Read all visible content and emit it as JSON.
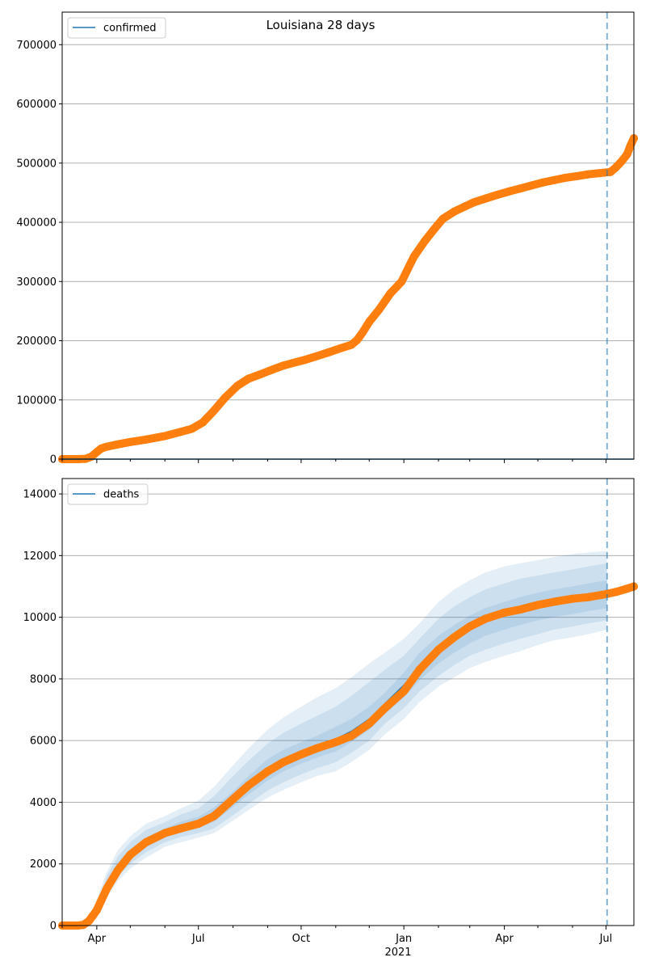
{
  "figure": {
    "title": "Louisiana 28 days"
  },
  "chart_data": [
    {
      "type": "line",
      "panel": "top",
      "title": "Louisiana 28 days",
      "legend": {
        "label": "confirmed",
        "placement": "top-left"
      },
      "grid": true,
      "xlim": [
        "2020-03-01",
        "2021-07-26"
      ],
      "ylim": [
        0,
        755000
      ],
      "yticks": [
        0,
        100000,
        200000,
        300000,
        400000,
        500000,
        600000,
        700000
      ],
      "ytick_labels": [
        "0",
        "100000",
        "200000",
        "300000",
        "400000",
        "500000",
        "600000",
        "700000"
      ],
      "forecast_date": "2021-07-02",
      "series": [
        {
          "name": "confirmed",
          "kind": "model",
          "color": "#1f77b4",
          "x": [
            "2020-03-01",
            "2021-07-26"
          ],
          "y": [
            0,
            0
          ]
        },
        {
          "kind": "observed",
          "color": "#ff7f0e",
          "x": [
            "2020-03-01",
            "2020-03-15",
            "2020-03-22",
            "2020-03-27",
            "2020-04-01",
            "2020-04-05",
            "2020-04-10",
            "2020-04-20",
            "2020-05-01",
            "2020-05-15",
            "2020-06-01",
            "2020-06-15",
            "2020-06-25",
            "2020-07-05",
            "2020-07-15",
            "2020-07-25",
            "2020-08-05",
            "2020-08-15",
            "2020-08-25",
            "2020-09-05",
            "2020-09-15",
            "2020-09-25",
            "2020-10-05",
            "2020-10-15",
            "2020-10-25",
            "2020-11-05",
            "2020-11-15",
            "2020-11-20",
            "2020-11-25",
            "2020-12-01",
            "2020-12-10",
            "2020-12-20",
            "2020-12-30",
            "2021-01-05",
            "2021-01-10",
            "2021-01-20",
            "2021-01-28",
            "2021-02-05",
            "2021-02-15",
            "2021-02-25",
            "2021-03-05",
            "2021-03-15",
            "2021-03-25",
            "2021-04-05",
            "2021-04-15",
            "2021-04-25",
            "2021-05-05",
            "2021-05-15",
            "2021-05-25",
            "2021-06-05",
            "2021-06-15",
            "2021-06-25",
            "2021-07-05",
            "2021-07-10",
            "2021-07-15",
            "2021-07-20",
            "2021-07-23",
            "2021-07-26"
          ],
          "y": [
            0,
            0,
            500,
            4000,
            12000,
            18000,
            21000,
            25000,
            29000,
            33000,
            39000,
            46000,
            51000,
            62000,
            82000,
            104000,
            124000,
            136000,
            143000,
            151000,
            158000,
            163000,
            168000,
            174000,
            180000,
            187000,
            193000,
            201000,
            214000,
            232000,
            253000,
            280000,
            300000,
            323000,
            342000,
            369000,
            388000,
            406000,
            418000,
            427000,
            434000,
            440000,
            446000,
            452000,
            457000,
            462000,
            467000,
            471000,
            475000,
            478000,
            481000,
            483000,
            485000,
            493000,
            503000,
            515000,
            530000,
            542000
          ]
        }
      ]
    },
    {
      "type": "line",
      "panel": "bottom",
      "legend": {
        "label": "deaths",
        "placement": "top-left"
      },
      "grid": true,
      "xlim": [
        "2020-03-01",
        "2021-07-26"
      ],
      "ylim": [
        0,
        14500
      ],
      "yticks": [
        0,
        2000,
        4000,
        6000,
        8000,
        10000,
        12000,
        14000
      ],
      "ytick_labels": [
        "0",
        "2000",
        "4000",
        "6000",
        "8000",
        "10000",
        "12000",
        "14000"
      ],
      "xticks": [
        "2020-04-01",
        "2020-07-01",
        "2020-10-01",
        "2021-01-01",
        "2021-04-01",
        "2021-07-01"
      ],
      "xtick_labels": [
        "Apr",
        "Jul",
        "Oct",
        "Jan",
        "Apr",
        "Jul"
      ],
      "xtick_year_label": "2021",
      "forecast_date": "2021-07-02",
      "series": [
        {
          "name": "deaths",
          "kind": "model",
          "color": "#1f77b4",
          "x": [
            "2020-03-01",
            "2020-03-20",
            "2020-03-25",
            "2020-04-01",
            "2020-04-10",
            "2020-04-20",
            "2020-05-01",
            "2020-05-15",
            "2020-06-01",
            "2020-06-15",
            "2020-07-01",
            "2020-07-15",
            "2020-08-01",
            "2020-08-15",
            "2020-09-01",
            "2020-09-15",
            "2020-10-01",
            "2020-10-15",
            "2020-11-01",
            "2020-11-15",
            "2020-12-01",
            "2020-12-15",
            "2021-01-01",
            "2021-01-15",
            "2021-02-01",
            "2021-02-15",
            "2021-03-01",
            "2021-03-15",
            "2021-04-01",
            "2021-04-15",
            "2021-05-01",
            "2021-05-15",
            "2021-06-01",
            "2021-06-15",
            "2021-07-02"
          ],
          "y": [
            0,
            0,
            50,
            500,
            1300,
            1900,
            2300,
            2700,
            3000,
            3200,
            3350,
            3600,
            4100,
            4550,
            5050,
            5350,
            5600,
            5800,
            6050,
            6300,
            6700,
            7200,
            7800,
            8400,
            8950,
            9300,
            9600,
            9850,
            10050,
            10200,
            10350,
            10450,
            10550,
            10650,
            10750
          ],
          "bands": [
            {
              "lower": [
                0,
                0,
                0,
                250,
                900,
                1450,
                1850,
                2200,
                2550,
                2700,
                2850,
                3000,
                3400,
                3750,
                4150,
                4400,
                4650,
                4850,
                5000,
                5300,
                5700,
                6200,
                6700,
                7250,
                7750,
                8050,
                8350,
                8550,
                8750,
                8900,
                9100,
                9250,
                9350,
                9450,
                9600
              ],
              "upper": [
                0,
                0,
                120,
                850,
                1750,
                2450,
                2900,
                3300,
                3550,
                3800,
                4050,
                4500,
                5200,
                5750,
                6350,
                6750,
                7100,
                7400,
                7700,
                8050,
                8500,
                8850,
                9300,
                9800,
                10500,
                10900,
                11200,
                11450,
                11650,
                11750,
                11850,
                11950,
                12050,
                12100,
                12150
              ]
            },
            {
              "lower": [
                0,
                0,
                10,
                320,
                1000,
                1600,
                2000,
                2380,
                2700,
                2870,
                3000,
                3150,
                3580,
                3950,
                4380,
                4650,
                4900,
                5100,
                5300,
                5600,
                6000,
                6550,
                7050,
                7600,
                8100,
                8450,
                8750,
                8950,
                9150,
                9300,
                9450,
                9600,
                9700,
                9800,
                9900
              ],
              "upper": [
                0,
                0,
                90,
                720,
                1600,
                2250,
                2700,
                3100,
                3350,
                3600,
                3800,
                4200,
                4850,
                5350,
                5900,
                6250,
                6550,
                6800,
                7100,
                7450,
                7900,
                8300,
                8750,
                9300,
                9950,
                10350,
                10650,
                10900,
                11100,
                11250,
                11350,
                11450,
                11550,
                11650,
                11750
              ]
            },
            {
              "lower": [
                0,
                0,
                25,
                400,
                1150,
                1750,
                2150,
                2540,
                2850,
                3030,
                3170,
                3370,
                3850,
                4250,
                4700,
                5000,
                5250,
                5450,
                5650,
                5950,
                6350,
                6850,
                7400,
                7950,
                8500,
                8850,
                9150,
                9400,
                9600,
                9750,
                9900,
                10000,
                10100,
                10200,
                10300
              ],
              "upper": [
                0,
                0,
                75,
                600,
                1450,
                2050,
                2450,
                2860,
                3150,
                3370,
                3530,
                3830,
                4350,
                4850,
                5400,
                5700,
                5950,
                6150,
                6450,
                6700,
                7100,
                7550,
                8200,
                8850,
                9400,
                9750,
                10050,
                10300,
                10500,
                10650,
                10800,
                10900,
                11000,
                11100,
                11200
              ]
            }
          ]
        },
        {
          "kind": "observed",
          "color": "#ff7f0e",
          "x": [
            "2020-03-01",
            "2020-03-15",
            "2020-03-20",
            "2020-03-25",
            "2020-04-01",
            "2020-04-10",
            "2020-04-20",
            "2020-05-01",
            "2020-05-15",
            "2020-06-01",
            "2020-06-15",
            "2020-07-01",
            "2020-07-15",
            "2020-08-01",
            "2020-08-15",
            "2020-09-01",
            "2020-09-15",
            "2020-10-01",
            "2020-10-15",
            "2020-11-01",
            "2020-11-15",
            "2020-12-01",
            "2020-12-15",
            "2021-01-01",
            "2021-01-15",
            "2021-02-01",
            "2021-02-15",
            "2021-03-01",
            "2021-03-15",
            "2021-04-01",
            "2021-04-15",
            "2021-05-01",
            "2021-05-15",
            "2021-06-01",
            "2021-06-15",
            "2021-07-01",
            "2021-07-10",
            "2021-07-20",
            "2021-07-26"
          ],
          "y": [
            0,
            0,
            20,
            150,
            500,
            1200,
            1800,
            2300,
            2700,
            3000,
            3150,
            3300,
            3550,
            4100,
            4550,
            5000,
            5300,
            5550,
            5750,
            5950,
            6150,
            6550,
            7050,
            7600,
            8300,
            8950,
            9350,
            9700,
            9950,
            10150,
            10250,
            10400,
            10500,
            10600,
            10650,
            10750,
            10820,
            10930,
            11000
          ]
        }
      ]
    }
  ]
}
